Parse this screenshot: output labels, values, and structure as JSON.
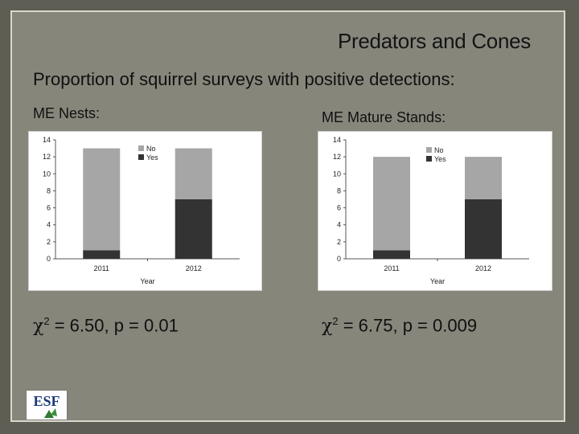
{
  "slide": {
    "title": "Predators and Cones",
    "subtitle": "Proportion of squirrel surveys with positive detections:",
    "charts": [
      {
        "label": "ME Nests:",
        "stat_symbol": "χ",
        "stat_power": "2",
        "stat_text": " = 6.50, p = 0.01"
      },
      {
        "label": "ME Mature Stands:",
        "stat_symbol": "χ",
        "stat_power": "2",
        "stat_text": " = 6.75, p = 0.009"
      }
    ],
    "logo": {
      "text": "ESF"
    },
    "colors": {
      "no": "#a6a6a6",
      "yes": "#333333",
      "frame": "#86867b",
      "background": "#5e5e55"
    }
  },
  "chart_data": [
    {
      "type": "bar",
      "stacked": true,
      "categories": [
        "2011",
        "2012"
      ],
      "series": [
        {
          "name": "Yes",
          "values": [
            1,
            7
          ]
        },
        {
          "name": "No",
          "values": [
            12,
            6
          ]
        }
      ],
      "xlabel": "Year",
      "ylabel": "",
      "ylim": [
        0,
        14
      ],
      "yticks": [
        0,
        2,
        4,
        6,
        8,
        10,
        12,
        14
      ],
      "legend": "top-right",
      "grid": false
    },
    {
      "type": "bar",
      "stacked": true,
      "categories": [
        "2011",
        "2012"
      ],
      "series": [
        {
          "name": "Yes",
          "values": [
            1,
            7
          ]
        },
        {
          "name": "No",
          "values": [
            11,
            5
          ]
        }
      ],
      "xlabel": "Year",
      "ylabel": "",
      "ylim": [
        0,
        14
      ],
      "yticks": [
        0,
        2,
        4,
        6,
        8,
        10,
        12,
        14
      ],
      "legend": "top-right",
      "grid": false
    }
  ]
}
